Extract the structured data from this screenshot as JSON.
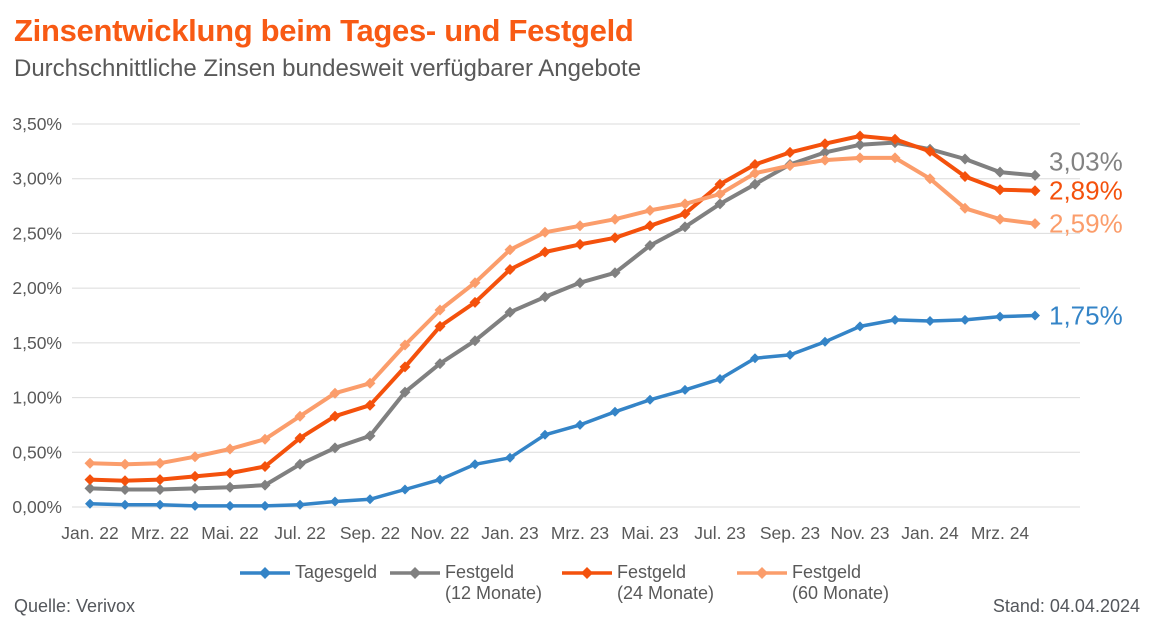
{
  "header": {
    "title": "Zinsentwicklung beim Tages- und Festgeld",
    "subtitle": "Durchschnittliche Zinsen bundesweit verfügbarer Angebote"
  },
  "footer": {
    "source": "Quelle: Verivox",
    "date": "Stand: 04.04.2024"
  },
  "colors": {
    "title_orange": "#F85A14",
    "blue": "#3484C7",
    "gray": "#808080",
    "orange": "#F4510C",
    "lightorange": "#FB9D6B",
    "axis_text": "#595959",
    "gridline": "#DBDBDB",
    "end_label_gray": "#828282"
  },
  "chart_data": {
    "type": "line",
    "title": "Zinsentwicklung beim Tages- und Festgeld",
    "subtitle": "Durchschnittliche Zinsen bundesweit verfügbarer Angebote",
    "grid": true,
    "legend_position": "bottom",
    "x_label_every": 2,
    "x_labels": [
      "Jan. 22",
      "Mrz. 22",
      "Mai. 22",
      "Jul. 22",
      "Sep. 22",
      "Nov. 22",
      "Jan. 23",
      "Mrz. 23",
      "Mai. 23",
      "Jul. 23",
      "Sep. 23",
      "Nov. 23",
      "Jan. 24",
      "Mrz. 24"
    ],
    "y_axis": {
      "min": 0,
      "max": 3.5,
      "step": 0.5,
      "tick_labels": [
        "0,00%",
        "0,50%",
        "1,00%",
        "1,50%",
        "2,00%",
        "2,50%",
        "3,00%",
        "3,50%"
      ]
    },
    "series": [
      {
        "id": "tagesgeld",
        "label": "Tagesgeld",
        "sublabel": "",
        "color_key": "blue",
        "end_label": "1,75%",
        "values": [
          0.03,
          0.02,
          0.02,
          0.01,
          0.01,
          0.01,
          0.02,
          0.05,
          0.07,
          0.16,
          0.25,
          0.39,
          0.45,
          0.66,
          0.75,
          0.87,
          0.98,
          1.07,
          1.17,
          1.36,
          1.39,
          1.51,
          1.65,
          1.71,
          1.7,
          1.71,
          1.74,
          1.75
        ]
      },
      {
        "id": "festgeld-12",
        "label": "Festgeld",
        "sublabel": "(12 Monate)",
        "color_key": "gray",
        "end_label": "3,03%",
        "values": [
          0.17,
          0.16,
          0.16,
          0.17,
          0.18,
          0.2,
          0.39,
          0.54,
          0.65,
          1.05,
          1.31,
          1.52,
          1.78,
          1.92,
          2.05,
          2.14,
          2.39,
          2.56,
          2.77,
          2.95,
          3.13,
          3.24,
          3.31,
          3.33,
          3.27,
          3.18,
          3.06,
          3.03
        ]
      },
      {
        "id": "festgeld-24",
        "label": "Festgeld",
        "sublabel": "(24 Monate)",
        "color_key": "orange",
        "end_label": "2,89%",
        "values": [
          0.25,
          0.24,
          0.25,
          0.28,
          0.31,
          0.37,
          0.63,
          0.83,
          0.93,
          1.28,
          1.65,
          1.87,
          2.17,
          2.33,
          2.4,
          2.46,
          2.57,
          2.68,
          2.95,
          3.13,
          3.24,
          3.32,
          3.39,
          3.36,
          3.25,
          3.02,
          2.9,
          2.89
        ]
      },
      {
        "id": "festgeld-60",
        "label": "Festgeld",
        "sublabel": "(60 Monate)",
        "color_key": "lightorange",
        "end_label": "2,59%",
        "values": [
          0.4,
          0.39,
          0.4,
          0.46,
          0.53,
          0.62,
          0.83,
          1.04,
          1.13,
          1.48,
          1.8,
          2.05,
          2.35,
          2.51,
          2.57,
          2.63,
          2.71,
          2.77,
          2.86,
          3.05,
          3.12,
          3.17,
          3.19,
          3.19,
          3.0,
          2.73,
          2.63,
          2.59
        ]
      }
    ]
  }
}
